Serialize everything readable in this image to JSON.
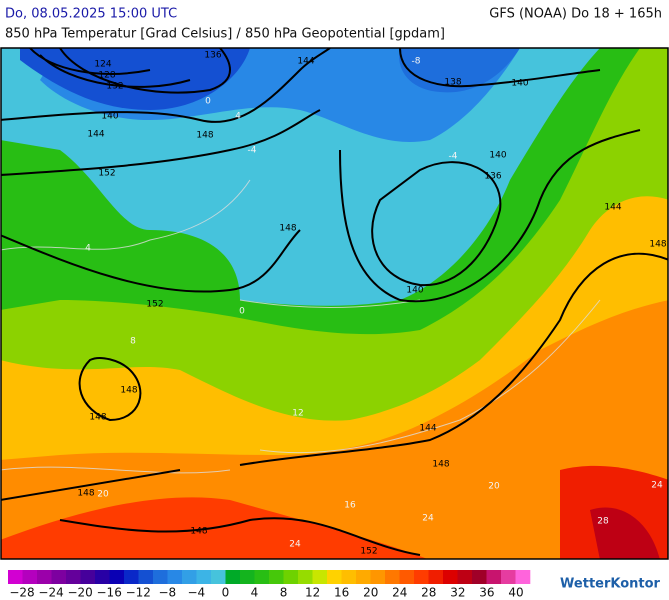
{
  "header": {
    "datetime": "Do, 08.05.2025 15:00 UTC",
    "model": "GFS (NOAA) Do 18 + 165h",
    "subtitle": "850 hPa Temperatur [Grad Celsius] / 850 hPa Geopotential [gpdam]"
  },
  "map": {
    "geopotential_labels": [
      "136",
      "124",
      "128",
      "132",
      "140",
      "144",
      "148",
      "152",
      "144",
      "138",
      "140",
      "140",
      "136",
      "148",
      "152",
      "140",
      "144",
      "148",
      "148",
      "148",
      "144",
      "148",
      "148",
      "148",
      "152"
    ],
    "temperature_labels": [
      "-8",
      "-4",
      "0",
      "4",
      "-4",
      "0",
      "4",
      "8",
      "12",
      "16",
      "20",
      "24",
      "24",
      "28",
      "24",
      "20"
    ]
  },
  "colorbar": {
    "colors": [
      "#d200d2",
      "#b400be",
      "#9b00aa",
      "#7d00a0",
      "#64009b",
      "#46009b",
      "#2800a5",
      "#0a00b4",
      "#0a28c8",
      "#1450d2",
      "#1e6edc",
      "#2888e6",
      "#329fe6",
      "#3cb4e6",
      "#46c3dc",
      "#00aa28",
      "#14b41e",
      "#28be14",
      "#46c80a",
      "#6ed200",
      "#96dc00",
      "#c8e600",
      "#ffd200",
      "#ffbe00",
      "#ffaa00",
      "#ff9600",
      "#ff7800",
      "#ff5a00",
      "#ff3c00",
      "#f01e00",
      "#dc0000",
      "#be0014",
      "#a00028",
      "#c8146e",
      "#e63ca0",
      "#ff64dc"
    ],
    "labels": [
      "−28",
      "−24",
      "−20",
      "−16",
      "−12",
      "−8",
      "−4",
      "0",
      "4",
      "8",
      "12",
      "16",
      "20",
      "24",
      "28",
      "32",
      "36",
      "40"
    ]
  },
  "logo": "WetterKontor"
}
